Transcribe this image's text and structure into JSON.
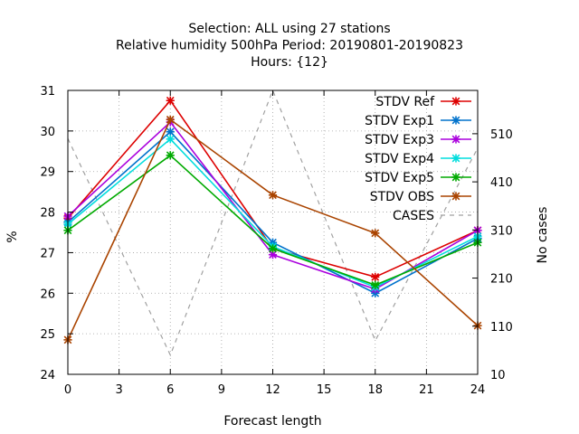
{
  "chart_data": {
    "type": "line",
    "title_lines": [
      "Selection: ALL using    27 stations",
      "Relative humidity 500hPa   Period: 20190801-20190823",
      "Hours: {12}"
    ],
    "xlabel": "Forecast length",
    "ylabel": "%",
    "y2label": "No cases",
    "xlim": [
      0,
      24
    ],
    "ylim": [
      24,
      31
    ],
    "y2lim": [
      10,
      600
    ],
    "x_ticks": [
      0,
      3,
      6,
      9,
      12,
      15,
      18,
      21,
      24
    ],
    "y_ticks": [
      24,
      25,
      26,
      27,
      28,
      29,
      30,
      31
    ],
    "y2_ticks": [
      10,
      110,
      210,
      310,
      410,
      510
    ],
    "grid": true,
    "legend_position": "top-right",
    "x": [
      0,
      6,
      12,
      18,
      24
    ],
    "series": [
      {
        "name": "STDV Ref",
        "color": "#dd0000",
        "axis": "y",
        "marker": "x-cross",
        "values": [
          27.85,
          30.75,
          27.1,
          26.4,
          27.55
        ]
      },
      {
        "name": "STDV Exp1",
        "color": "#0072cc",
        "axis": "y",
        "marker": "x-cross",
        "values": [
          27.75,
          29.98,
          27.25,
          26.0,
          27.35
        ]
      },
      {
        "name": "STDV Exp3",
        "color": "#aa00dd",
        "axis": "y",
        "marker": "x-cross",
        "values": [
          27.9,
          30.22,
          26.95,
          26.1,
          27.55
        ]
      },
      {
        "name": "STDV Exp4",
        "color": "#00dddd",
        "axis": "y",
        "marker": "x-cross",
        "values": [
          27.7,
          29.8,
          27.15,
          26.15,
          27.4
        ]
      },
      {
        "name": "STDV Exp5",
        "color": "#00aa00",
        "axis": "y",
        "marker": "x-cross",
        "values": [
          27.55,
          29.4,
          27.1,
          26.2,
          27.25
        ]
      },
      {
        "name": "STDV OBS",
        "color": "#aa4400",
        "axis": "y",
        "marker": "x-cross",
        "values": [
          24.85,
          30.28,
          28.42,
          27.48,
          25.2
        ]
      },
      {
        "name": "CASES",
        "color": "#a0a0a0",
        "axis": "y2",
        "marker": "none",
        "dashed": true,
        "values": [
          500,
          50,
          600,
          80,
          480
        ]
      }
    ]
  }
}
